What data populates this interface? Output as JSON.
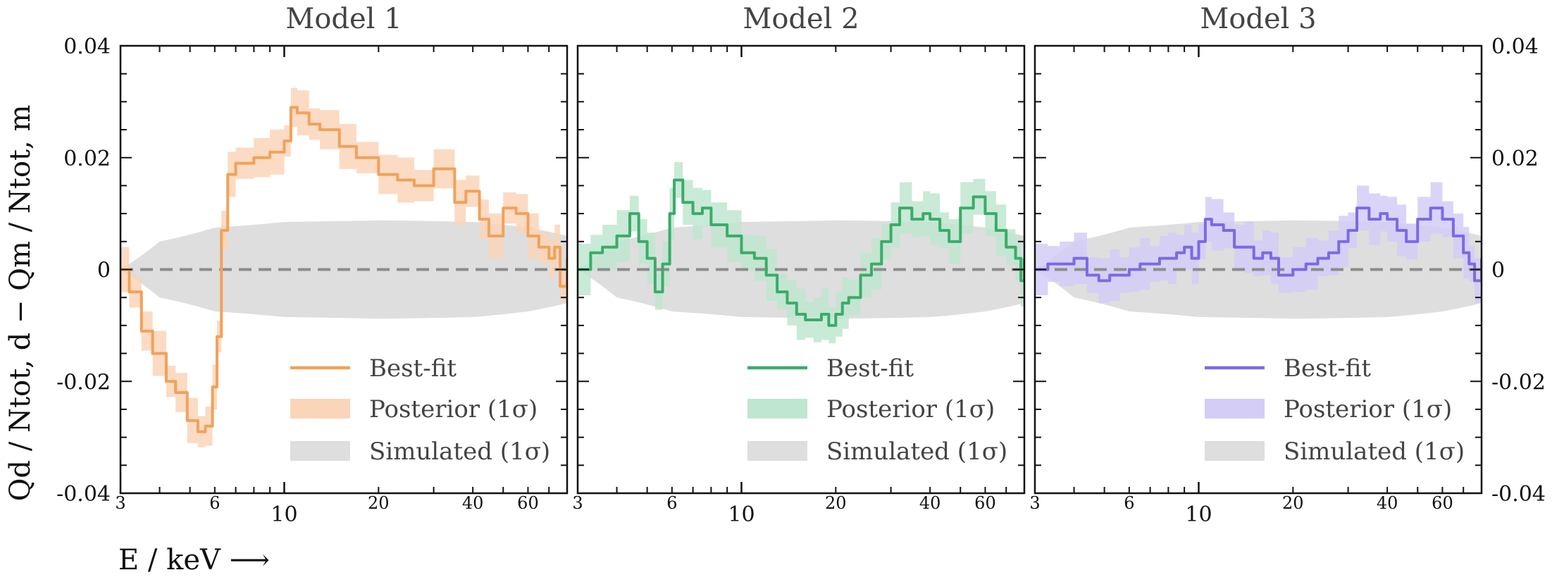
{
  "figure": {
    "ylabel": "Qd / Ntot, d − Qm / Ntot, m",
    "xlabel": "E / keV ⟶"
  },
  "legend": {
    "best_fit": "Best-fit",
    "posterior": "Posterior (1σ)",
    "simulated": "Simulated (1σ)"
  },
  "colors": {
    "model1": "#f0a25b",
    "model1_band": "#fad5b8",
    "model2": "#3aac6a",
    "model2_band": "#bfe6cf",
    "model3": "#7a6ae6",
    "model3_band": "#d3cdf7",
    "simulated_band": "#dedede",
    "zero_line": "#8c8c8c"
  },
  "chart_data": [
    {
      "type": "line",
      "title": "Model 1",
      "xscale": "log",
      "xlim": [
        3,
        80
      ],
      "ylim": [
        -0.04,
        0.04
      ],
      "xticks_major": [
        10
      ],
      "xticks_minor_labeled": [
        3,
        6,
        20,
        40,
        60
      ],
      "yticks": [
        -0.04,
        -0.02,
        0,
        0.02,
        0.04
      ],
      "ytick_labels": [
        "-0.04",
        "-0.02",
        "0",
        "0.02",
        "0.04"
      ],
      "reference_line": 0,
      "simulated_band_halfwidth": {
        "x": [
          3,
          4,
          6,
          10,
          20,
          40,
          60,
          80
        ],
        "y": [
          0.0,
          0.005,
          0.0075,
          0.0085,
          0.0088,
          0.0085,
          0.0075,
          0.006
        ]
      },
      "series": [
        {
          "name": "Best-fit",
          "x": [
            3,
            3.2,
            3.5,
            3.8,
            4.2,
            4.5,
            4.9,
            5.3,
            5.6,
            5.9,
            6.1,
            6.3,
            6.6,
            7,
            8,
            9,
            10,
            10.5,
            11,
            12,
            13,
            15,
            17,
            20,
            23,
            26,
            30,
            35,
            38,
            42,
            45,
            50,
            55,
            60,
            65,
            70,
            73,
            76,
            80
          ],
          "y": [
            0,
            -0.004,
            -0.011,
            -0.015,
            -0.02,
            -0.022,
            -0.027,
            -0.029,
            -0.028,
            -0.021,
            -0.012,
            0.007,
            0.017,
            0.019,
            0.02,
            0.021,
            0.023,
            0.029,
            0.028,
            0.026,
            0.025,
            0.022,
            0.02,
            0.017,
            0.016,
            0.015,
            0.018,
            0.012,
            0.014,
            0.009,
            0.006,
            0.011,
            0.01,
            0.006,
            0.004,
            0.002,
            0.004,
            -0.003,
            0.002
          ]
        },
        {
          "name": "Posterior (1σ)",
          "halfwidth": 0.0035
        }
      ]
    },
    {
      "type": "line",
      "title": "Model 2",
      "xscale": "log",
      "xlim": [
        3,
        80
      ],
      "ylim": [
        -0.04,
        0.04
      ],
      "xticks_major": [
        10
      ],
      "xticks_minor_labeled": [
        3,
        6,
        20,
        40,
        60
      ],
      "yticks": [
        -0.04,
        -0.02,
        0,
        0.02,
        0.04
      ],
      "reference_line": 0,
      "simulated_band_halfwidth": {
        "x": [
          3,
          4,
          6,
          10,
          20,
          40,
          60,
          80
        ],
        "y": [
          0.0,
          0.005,
          0.0075,
          0.0085,
          0.0088,
          0.0085,
          0.0075,
          0.006
        ]
      },
      "series": [
        {
          "name": "Best-fit",
          "x": [
            3,
            3.3,
            3.6,
            4,
            4.4,
            4.7,
            5,
            5.3,
            5.6,
            5.9,
            6.1,
            6.5,
            7,
            7.5,
            8,
            9,
            10,
            11,
            12,
            13,
            14,
            15,
            16,
            17,
            18,
            19,
            20,
            21,
            22,
            24,
            26,
            28,
            30,
            32,
            35,
            38,
            40,
            43,
            46,
            50,
            55,
            60,
            65,
            70,
            75,
            78,
            80
          ],
          "y": [
            0,
            0.003,
            0.004,
            0.006,
            0.01,
            0.005,
            0.002,
            -0.004,
            0.001,
            0.01,
            0.016,
            0.012,
            0.01,
            0.011,
            0.008,
            0.006,
            0.003,
            0.002,
            -0.001,
            -0.004,
            -0.006,
            -0.008,
            -0.009,
            -0.009,
            -0.008,
            -0.01,
            -0.008,
            -0.006,
            -0.005,
            -0.001,
            0.001,
            0.005,
            0.008,
            0.011,
            0.009,
            0.01,
            0.009,
            0.007,
            0.005,
            0.011,
            0.013,
            0.01,
            0.007,
            0.004,
            0.002,
            -0.002,
            0.002
          ]
        },
        {
          "name": "Posterior (1σ)",
          "halfwidth": 0.004
        }
      ]
    },
    {
      "type": "line",
      "title": "Model 3",
      "xscale": "log",
      "xlim": [
        3,
        80
      ],
      "ylim": [
        -0.04,
        0.04
      ],
      "xticks_major": [
        10
      ],
      "xticks_minor_labeled": [
        3,
        6,
        20,
        40,
        60
      ],
      "yticks": [
        -0.04,
        -0.02,
        0,
        0.02,
        0.04
      ],
      "ytick_labels": [
        "-0.04",
        "-0.02",
        "0",
        "0.02",
        "0.04"
      ],
      "reference_line": 0,
      "simulated_band_halfwidth": {
        "x": [
          3,
          4,
          6,
          10,
          20,
          40,
          60,
          80
        ],
        "y": [
          0.0,
          0.005,
          0.0075,
          0.0085,
          0.0088,
          0.0085,
          0.0075,
          0.006
        ]
      },
      "series": [
        {
          "name": "Best-fit",
          "x": [
            3,
            3.3,
            3.6,
            4,
            4.4,
            4.8,
            5.2,
            5.6,
            6,
            6.5,
            7,
            7.5,
            8,
            8.5,
            9,
            9.5,
            10,
            10.5,
            11,
            12,
            13,
            14,
            15,
            16,
            17,
            18,
            20,
            22,
            24,
            26,
            28,
            30,
            32,
            35,
            38,
            40,
            43,
            46,
            50,
            55,
            60,
            65,
            70,
            73,
            76,
            80
          ],
          "y": [
            0,
            0.001,
            0.001,
            0.002,
            -0.001,
            -0.002,
            -0.001,
            -0.001,
            0.0,
            0.001,
            0.001,
            0.002,
            0.002,
            0.003,
            0.004,
            0.002,
            0.005,
            0.009,
            0.008,
            0.007,
            0.004,
            0.004,
            0.002,
            0.003,
            0.002,
            -0.001,
            0.0,
            0.001,
            0.002,
            0.003,
            0.005,
            0.007,
            0.011,
            0.009,
            0.01,
            0.009,
            0.007,
            0.005,
            0.009,
            0.011,
            0.009,
            0.006,
            0.003,
            0.001,
            -0.002,
            0.002
          ]
        },
        {
          "name": "Posterior (1σ)",
          "halfwidth": 0.004
        }
      ]
    }
  ]
}
